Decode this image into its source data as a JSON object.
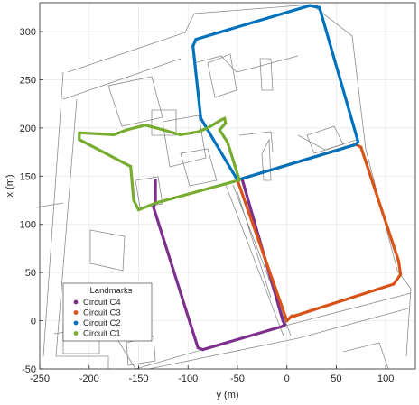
{
  "chart_data": {
    "type": "line",
    "xlabel": "y (m)",
    "ylabel": "x (m)",
    "xlim": [
      -250,
      130
    ],
    "ylim": [
      -50,
      330
    ],
    "xticks": [
      -250,
      -200,
      -150,
      -100,
      -50,
      0,
      50,
      100
    ],
    "yticks": [
      -50,
      0,
      50,
      100,
      150,
      200,
      250,
      300
    ],
    "grid": true,
    "legend": {
      "title": "Landmarks",
      "placement": "bottom-left",
      "entries": [
        "Circuit C4",
        "Circuit C3",
        "Circuit C2",
        "Circuit C1"
      ]
    },
    "series": [
      {
        "name": "Circuit C4",
        "color": "#7e2f8e",
        "x": [
          -45,
          -4,
          -2,
          -5,
          -85,
          -90,
          -135,
          -133,
          -133
        ],
        "y": [
          146,
          0,
          -4,
          -6,
          -30,
          -28,
          118,
          122,
          146
        ]
      },
      {
        "name": "Circuit C3",
        "color": "#d95319",
        "x": [
          -50,
          0,
          3,
          5,
          8,
          108,
          115,
          113,
          75,
          70,
          -50
        ],
        "y": [
          146,
          0,
          3,
          5,
          5,
          38,
          48,
          62,
          180,
          183,
          146
        ]
      },
      {
        "name": "Circuit C2",
        "color": "#0072bd",
        "x": [
          -50,
          70,
          72,
          33,
          23,
          -92,
          -95,
          -87,
          -50
        ],
        "y": [
          146,
          183,
          186,
          325,
          327,
          292,
          285,
          210,
          146
        ]
      },
      {
        "name": "Circuit C1",
        "color": "#77ac30",
        "x": [
          -48,
          -133,
          -150,
          -155,
          -158,
          -210,
          -210,
          -175,
          -162,
          -143,
          -125,
          -108,
          -90,
          -80,
          -67,
          -63,
          -62,
          -68,
          -60,
          -48
        ],
        "y": [
          146,
          122,
          115,
          125,
          160,
          188,
          195,
          193,
          198,
          203,
          198,
          193,
          196,
          200,
          208,
          210,
          205,
          198,
          185,
          146
        ]
      }
    ]
  }
}
